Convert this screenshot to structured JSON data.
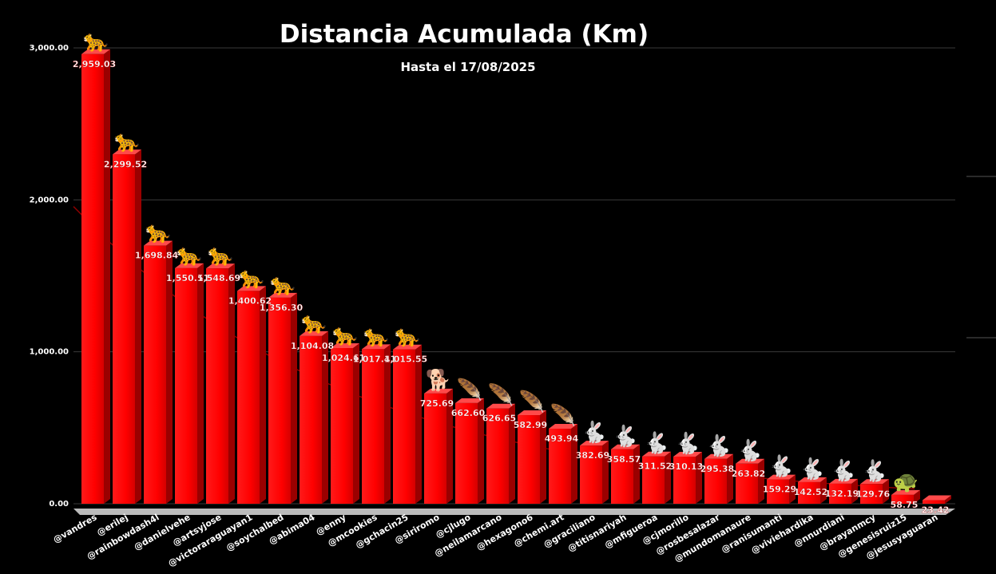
{
  "chart_data": {
    "type": "bar",
    "title": "Distancia Acumulada (Km)",
    "subtitle": "Hasta el 17/08/2025",
    "xlabel": "",
    "ylabel": "",
    "ylim": [
      0,
      3000
    ],
    "yticks": [
      "0.00",
      "1,000.00",
      "2,000.00",
      "3,000.00"
    ],
    "grid": true,
    "bar_color": "#ff0000",
    "background": "#000000",
    "categories": [
      "@vandres",
      "@erilej",
      "@rainbowdash4l",
      "@danielvehe",
      "@artsyjose",
      "@victoraraguayan1",
      "@soychalbed",
      "@abima04",
      "@enny",
      "@mcookies",
      "@gchacin25",
      "@siriromo",
      "@cjlugo",
      "@neilamarcano",
      "@hexagono6",
      "@chemi.art",
      "@graciliano",
      "@titisnariyah",
      "@mfigueroa",
      "@cjmorillo",
      "@rosbesalazar",
      "@mundomanaure",
      "@ranisumanti",
      "@viviehardika",
      "@nnurdiani",
      "@brayanmcy",
      "@genesisruiz15",
      "@jesusyaguaran"
    ],
    "values": [
      2959.03,
      2299.52,
      1698.84,
      1550.51,
      1548.69,
      1400.62,
      1356.3,
      1104.08,
      1024.61,
      1017.41,
      1015.55,
      725.69,
      662.6,
      626.65,
      582.99,
      493.94,
      382.69,
      358.57,
      311.52,
      310.13,
      295.38,
      263.82,
      159.29,
      142.52,
      132.19,
      129.76,
      58.75,
      23.42
    ],
    "labels": [
      "2,959.03",
      "2,299.52",
      "1,698.84",
      "1,550.51",
      "1,548.69",
      "1,400.62",
      "1,356.30",
      "1,104.08",
      "1,024.61",
      "1,017.41",
      "1,015.55",
      "725.69",
      "662.60",
      "626.65",
      "582.99",
      "493.94",
      "382.69",
      "358.57",
      "311.52",
      "310.13",
      "295.38",
      "263.82",
      "159.29",
      "142.52",
      "132.19",
      "129.76",
      "58.75",
      "23.42"
    ],
    "icons": [
      "leopard-icon",
      "leopard-icon",
      "leopard-icon",
      "leopard-icon",
      "leopard-icon",
      "leopard-icon",
      "leopard-icon",
      "leopard-icon",
      "leopard-icon",
      "leopard-icon",
      "leopard-icon",
      "dog-icon",
      "feather-icon",
      "feather-icon",
      "feather-icon",
      "feather-icon",
      "rabbit-icon",
      "rabbit-icon",
      "rabbit-icon",
      "rabbit-icon",
      "rabbit-icon",
      "rabbit-icon",
      "rabbit-icon",
      "rabbit-icon",
      "rabbit-icon",
      "rabbit-icon",
      "turtle-icon",
      "none"
    ],
    "icon_glyphs": {
      "leopard-icon": "🐆",
      "dog-icon": "🐕",
      "feather-icon": "🪶",
      "rabbit-icon": "🐇",
      "turtle-icon": "🐢"
    },
    "trendline": true
  }
}
